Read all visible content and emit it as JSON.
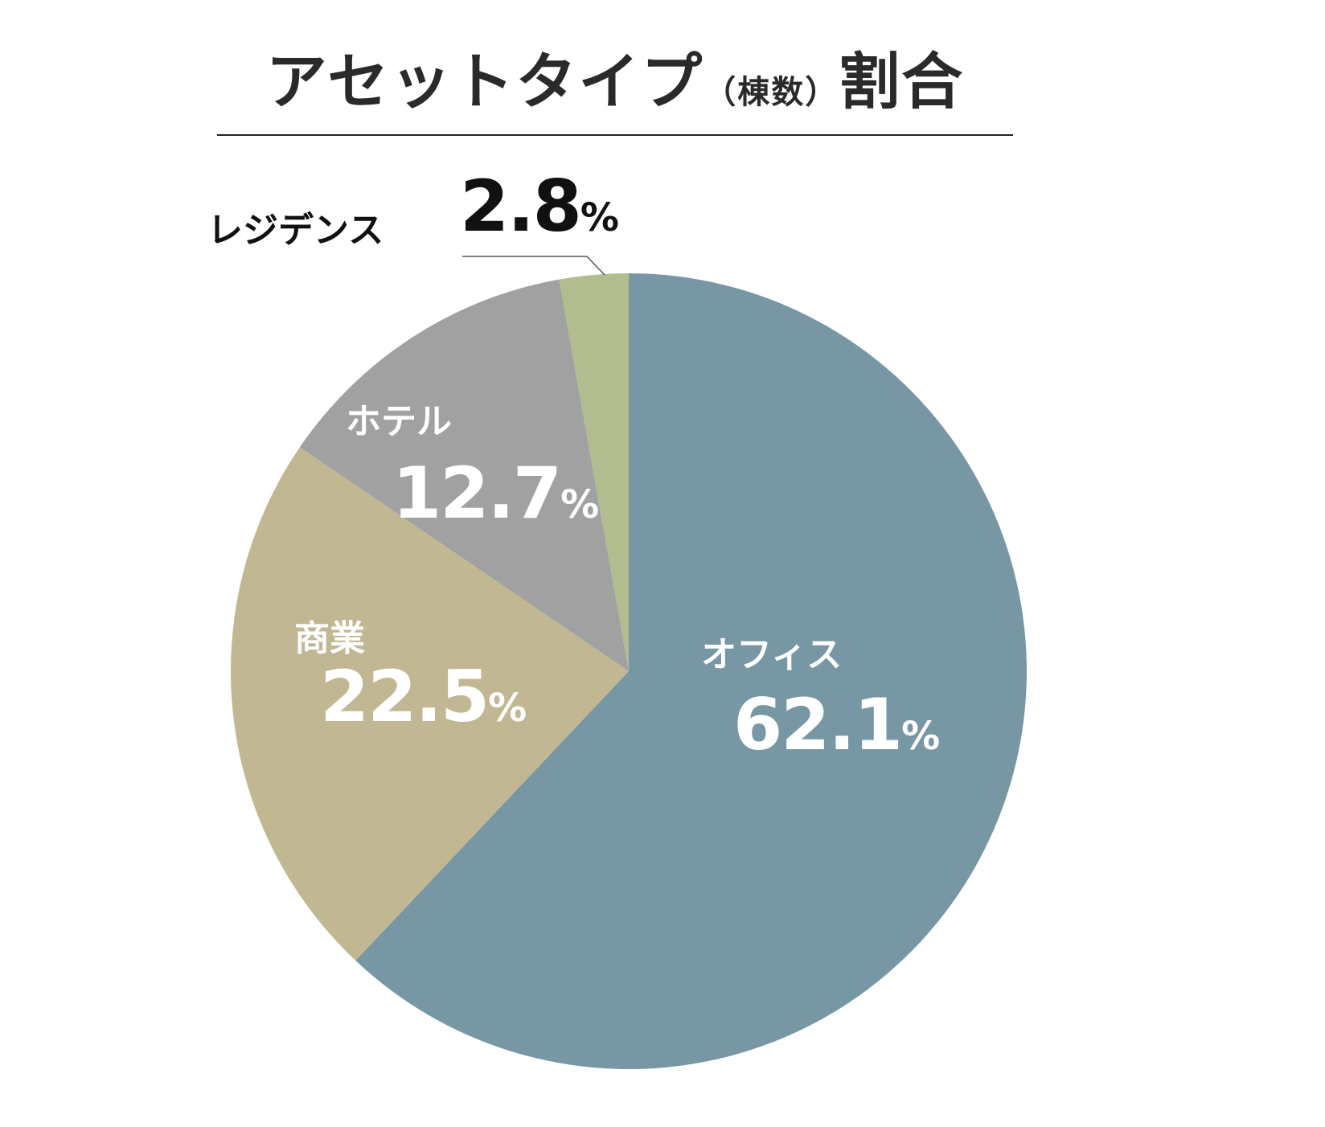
{
  "chart_data": {
    "type": "pie",
    "title": "アセットタイプ",
    "title_sub": "（棟数）",
    "title_end": "割合",
    "start": "top",
    "direction": "clockwise",
    "slices": [
      {
        "label": "オフィス",
        "value": 62.1,
        "display": "62.1",
        "color": "#7897a5"
      },
      {
        "label": "商業",
        "value": 22.5,
        "display": "22.5",
        "color": "#c1b792"
      },
      {
        "label": "ホテル",
        "value": 12.7,
        "display": "12.7",
        "color": "#a0a1a0"
      },
      {
        "label": "レジデンス",
        "value": 2.8,
        "display": "2.8",
        "color": "#b2bd8f"
      }
    ],
    "unit": "%"
  }
}
